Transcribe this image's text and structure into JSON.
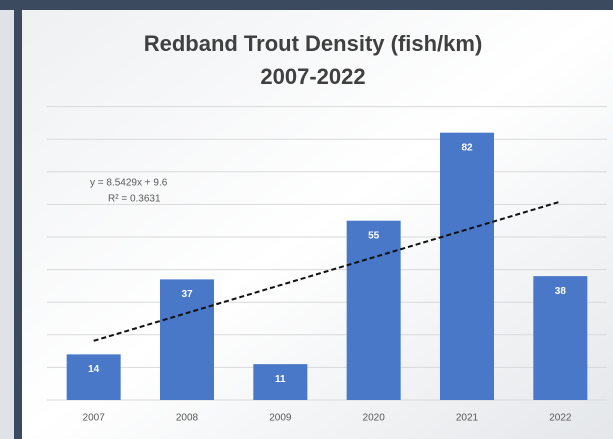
{
  "chart_data": {
    "type": "bar",
    "title": "Redband Trout Density (fish/km)",
    "subtitle": "2007-2022",
    "categories": [
      "2007",
      "2008",
      "2009",
      "2020",
      "2021",
      "2022"
    ],
    "values": [
      14,
      37,
      11,
      55,
      82,
      38
    ],
    "color": "#4a78c8",
    "ylim": [
      0,
      90
    ],
    "yticks": [
      0,
      10,
      20,
      30,
      40,
      50,
      60,
      70,
      80,
      90
    ],
    "ytick_labels_visible": false,
    "grid": true,
    "data_labels": true,
    "trendline": {
      "equation": "y = 8.5429x + 9.6",
      "r_squared": "R² = 0.3631",
      "slope": 8.5429,
      "intercept": 9.6,
      "style": "dashed"
    }
  }
}
